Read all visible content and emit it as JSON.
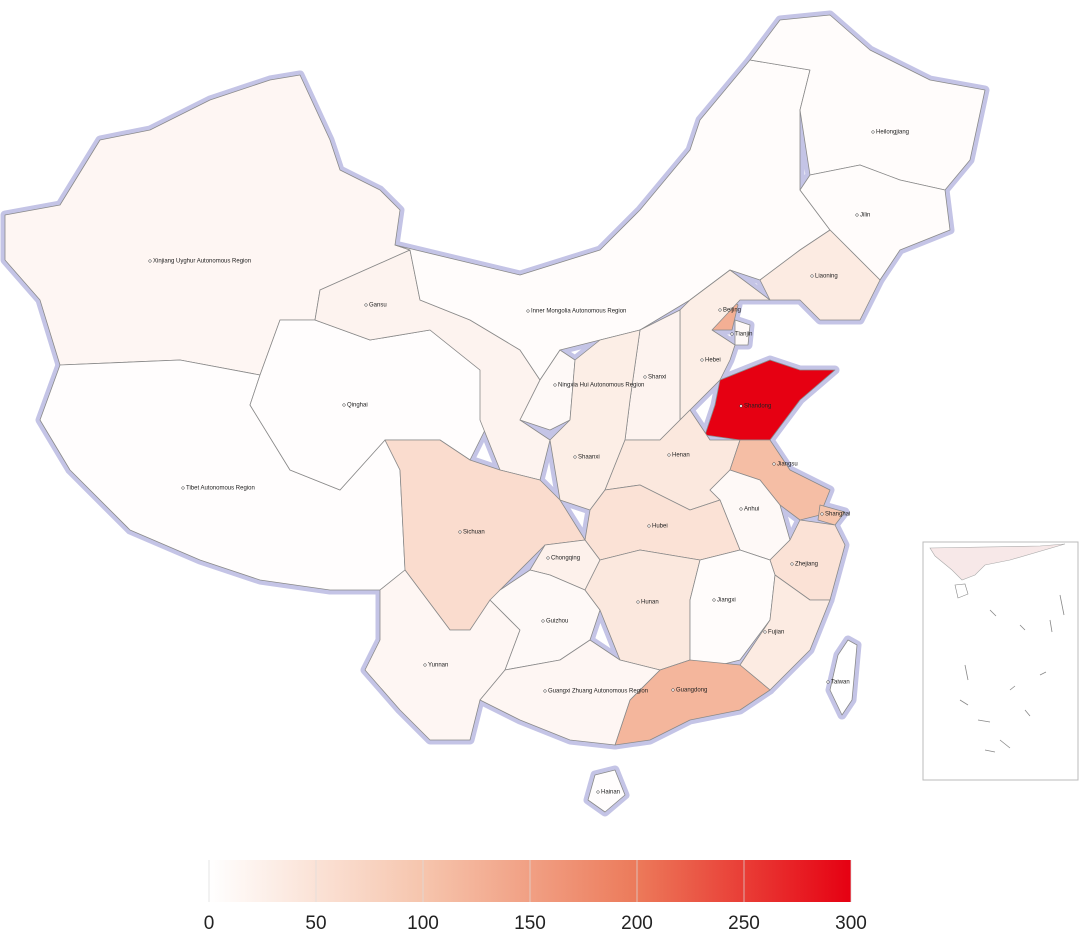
{
  "chart_data": {
    "type": "map",
    "categories": [
      "Xinjiang Uyghur Autonomous Region",
      "Tibet Autonomous Region",
      "Qinghai",
      "Gansu",
      "Inner Mongolia Autonomous Region",
      "Heilongjiang",
      "Jilin",
      "Liaoning",
      "Beijing",
      "Tianjin",
      "Hebei",
      "Shanxi",
      "Shandong",
      "Ningxia Hui Autonomous Region",
      "Shaanxi",
      "Henan",
      "Jiangsu",
      "Anhui",
      "Shanghai",
      "Hubei",
      "Zhejiang",
      "Sichuan",
      "Chongqing",
      "Yunnan",
      "Guizhou",
      "Hunan",
      "Jiangxi",
      "Fujian",
      "Guangdong",
      "Guangxi Zhuang Autonomous Region",
      "Hainan",
      "Taiwan"
    ],
    "values": [
      15,
      3,
      3,
      20,
      5,
      5,
      5,
      35,
      130,
      10,
      30,
      20,
      300,
      10,
      30,
      40,
      110,
      10,
      100,
      50,
      50,
      60,
      25,
      15,
      10,
      40,
      5,
      35,
      120,
      15,
      3,
      0
    ],
    "vlim": [
      0,
      300
    ],
    "vticks": [
      0,
      50,
      100,
      150,
      200,
      250,
      300
    ],
    "colors": [
      "#ffffff",
      "#f6c5ad",
      "#ec7a5a",
      "#e60012"
    ]
  }
}
